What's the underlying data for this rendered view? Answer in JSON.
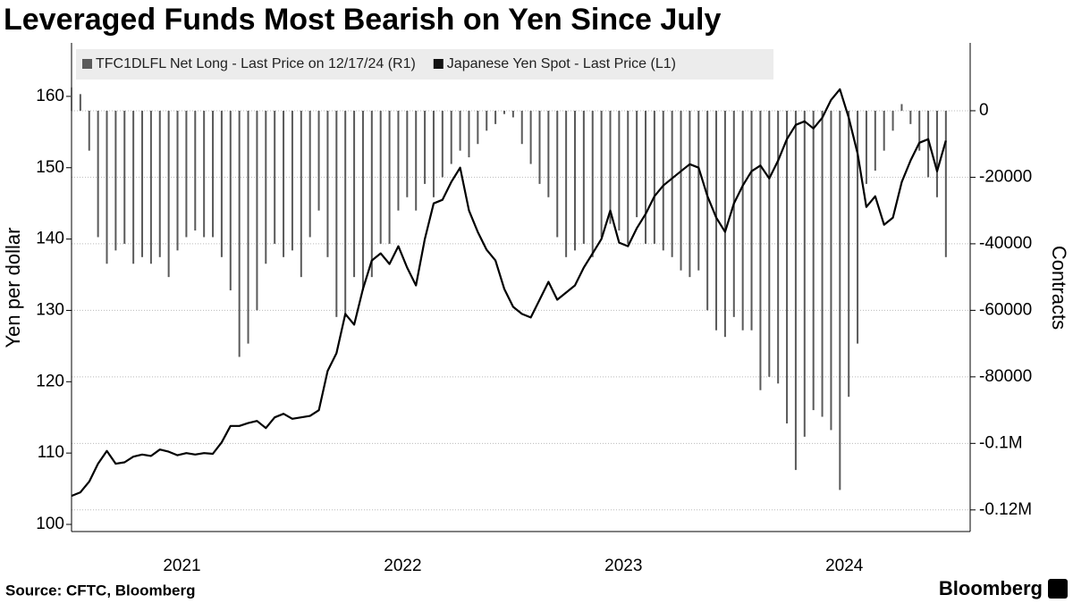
{
  "chart_data": {
    "type": "combo",
    "title": "Leveraged Funds Most Bearish on Yen Since July",
    "ylabel": "Yen per dollar",
    "y2label": "Contracts",
    "source": "Source: CFTC, Bloomberg",
    "brand": "Bloomberg",
    "x": [
      2021,
      2021.04,
      2021.08,
      2021.12,
      2021.16,
      2021.2,
      2021.24,
      2021.28,
      2021.32,
      2021.36,
      2021.4,
      2021.44,
      2021.48,
      2021.52,
      2021.56,
      2021.6,
      2021.64,
      2021.68,
      2021.72,
      2021.76,
      2021.8,
      2021.84,
      2021.88,
      2021.92,
      2021.96,
      2022,
      2022.04,
      2022.08,
      2022.12,
      2022.16,
      2022.2,
      2022.24,
      2022.28,
      2022.32,
      2022.36,
      2022.4,
      2022.44,
      2022.48,
      2022.52,
      2022.56,
      2022.6,
      2022.64,
      2022.68,
      2022.72,
      2022.76,
      2022.8,
      2022.84,
      2022.88,
      2022.92,
      2022.96,
      2023,
      2023.04,
      2023.08,
      2023.12,
      2023.16,
      2023.2,
      2023.24,
      2023.28,
      2023.32,
      2023.36,
      2023.4,
      2023.44,
      2023.48,
      2023.52,
      2023.56,
      2023.6,
      2023.64,
      2023.68,
      2023.72,
      2023.76,
      2023.8,
      2023.84,
      2023.88,
      2023.92,
      2023.96,
      2024,
      2024.04,
      2024.08,
      2024.12,
      2024.16,
      2024.2,
      2024.24,
      2024.28,
      2024.32,
      2024.36,
      2024.4,
      2024.44,
      2024.48,
      2024.52,
      2024.56,
      2024.6,
      2024.64,
      2024.68,
      2024.72,
      2024.76,
      2024.8,
      2024.84,
      2024.88,
      2024.92,
      2024.96
    ],
    "series": [
      {
        "name": "TFC1DLFL Net Long - Last Price on 12/17/24 (R1)",
        "type": "bar",
        "axis": "y2",
        "color": "#5a5a5a",
        "values": [
          7000,
          5000,
          -12000,
          -38000,
          -46000,
          -42000,
          -40000,
          -46000,
          -44000,
          -46000,
          -44000,
          -50000,
          -42000,
          -38000,
          -36000,
          -38000,
          -38000,
          -44000,
          -54000,
          -74000,
          -70000,
          -60000,
          -46000,
          -40000,
          -44000,
          -42000,
          -50000,
          -38000,
          -30000,
          -44000,
          -62000,
          -62000,
          -50000,
          -54000,
          -50000,
          -40000,
          -40000,
          -30000,
          -26000,
          -30000,
          -22000,
          -26000,
          -20000,
          -16000,
          -12000,
          -14000,
          -10000,
          -6000,
          -4000,
          -1000,
          -2000,
          -10000,
          -16000,
          -22000,
          -26000,
          -38000,
          -44000,
          -42000,
          -40000,
          -44000,
          -38000,
          -34000,
          -36000,
          -40000,
          -32000,
          -40000,
          -40000,
          -42000,
          -44000,
          -48000,
          -50000,
          -48000,
          -60000,
          -66000,
          -68000,
          -62000,
          -66000,
          -66000,
          -84000,
          -80000,
          -82000,
          -94000,
          -108000,
          -98000,
          -90000,
          -92000,
          -96000,
          -114000,
          -86000,
          -70000,
          -22000,
          -18000,
          -12000,
          -6000,
          2000,
          -4000,
          -12000,
          -20000,
          -26000,
          -44000
        ]
      },
      {
        "name": "Japanese Yen Spot - Last Price (L1)",
        "type": "line",
        "axis": "y",
        "color": "#000000",
        "values": [
          104,
          104.5,
          106,
          108.5,
          110.3,
          108.5,
          108.7,
          109.5,
          109.8,
          109.6,
          110.5,
          110.2,
          109.7,
          110,
          109.8,
          110,
          109.9,
          111.5,
          113.8,
          113.8,
          114.2,
          114.5,
          113.5,
          115,
          115.5,
          114.8,
          115,
          115.2,
          116,
          121.5,
          124,
          129.5,
          128,
          133,
          137,
          138,
          136.5,
          139,
          136,
          133.5,
          140,
          145,
          145.5,
          148,
          150,
          144,
          141,
          138.5,
          137,
          133,
          130.5,
          129.5,
          129,
          131.5,
          134,
          131.5,
          132.5,
          133.5,
          136,
          138,
          140,
          144,
          139.5,
          139,
          141.5,
          143.5,
          146,
          147.5,
          148.5,
          149.5,
          150.5,
          150,
          146,
          143,
          141,
          145,
          147.5,
          149.5,
          150.3,
          148.5,
          151,
          154,
          156,
          156.5,
          155.5,
          157,
          159.5,
          161,
          157,
          152,
          144.5,
          146,
          142,
          143,
          148,
          151,
          153.5,
          154,
          149.5,
          153.8
        ]
      }
    ],
    "xlim": [
      2021,
      2025.07
    ],
    "xticks": [
      {
        "value": 2021.5,
        "label": "2021"
      },
      {
        "value": 2022.5,
        "label": "2022"
      },
      {
        "value": 2023.5,
        "label": "2023"
      },
      {
        "value": 2024.5,
        "label": "2024"
      }
    ],
    "ylim": [
      99,
      167.5
    ],
    "yticks": [
      100,
      110,
      120,
      130,
      140,
      150,
      160
    ],
    "y2lim": [
      -126500,
      20400
    ],
    "y2ticks": [
      0,
      -20000,
      -40000,
      -60000,
      -80000,
      {
        "value": -100000,
        "label": "-0.1M"
      },
      {
        "value": -120000,
        "label": "-0.12M"
      }
    ],
    "grid": true
  }
}
